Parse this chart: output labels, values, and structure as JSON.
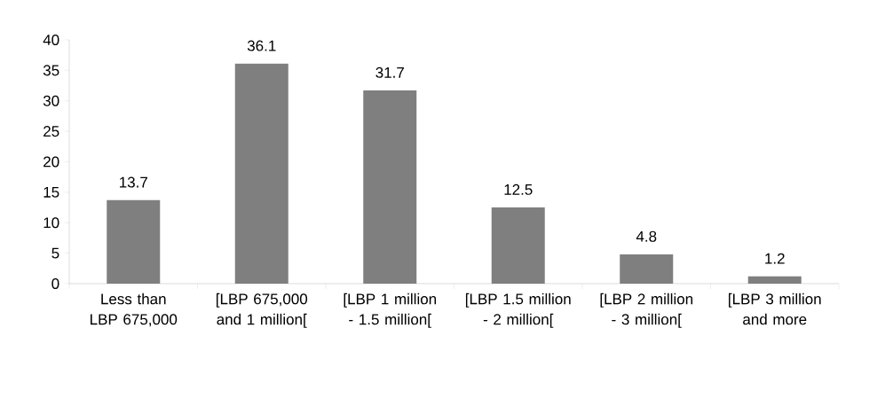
{
  "chart_data": {
    "type": "bar",
    "categories": [
      "Less than LBP 675,000",
      "[LBP 675,000 and 1 million[",
      "[LBP 1 million - 1.5 million[",
      "[LBP 1.5 million - 2 million[",
      "[LBP 2 million - 3 million[",
      "[LBP 3 million and more"
    ],
    "values": [
      13.7,
      36.1,
      31.7,
      12.5,
      4.8,
      1.2
    ],
    "value_labels": [
      "13.7",
      "36.1",
      "31.7",
      "12.5",
      "4.8",
      "1.2"
    ],
    "color": "#7f7f7f",
    "ylim": [
      0,
      40
    ],
    "yticks": [
      0,
      5,
      10,
      15,
      20,
      25,
      30,
      35,
      40
    ],
    "grid": false
  }
}
